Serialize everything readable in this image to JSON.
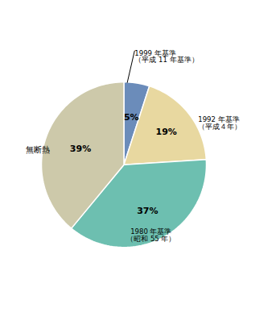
{
  "chart_data": {
    "type": "pie",
    "categories": [
      "1999 年基準\n（平成 11 年基準）",
      "1992 年基準\n（平成４年）",
      "1980 年基準\n（昭和 55 年）",
      "無断熱"
    ],
    "values": [
      5,
      19,
      37,
      39
    ],
    "value_labels": [
      "5%",
      "19%",
      "37%",
      "39%"
    ],
    "colors": [
      "#6b8cba",
      "#e8d8a0",
      "#6dbfb0",
      "#cdc9aa"
    ],
    "data_labels": true
  }
}
